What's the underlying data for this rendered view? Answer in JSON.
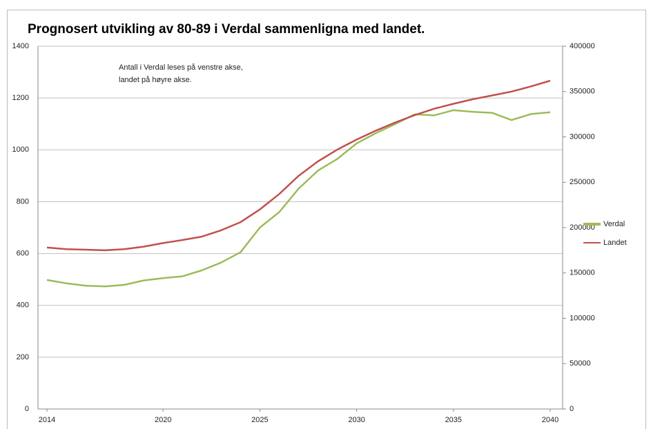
{
  "chart_data": {
    "type": "line",
    "title": "Prognosert utvikling av 80-89 i Verdal sammenligna med landet.",
    "annotation": [
      "Antall i Verdal leses på venstre akse,",
      "landet på høyre akse."
    ],
    "x": [
      2014,
      2015,
      2016,
      2017,
      2018,
      2019,
      2020,
      2021,
      2022,
      2023,
      2024,
      2025,
      2026,
      2027,
      2028,
      2029,
      2030,
      2031,
      2032,
      2033,
      2034,
      2035,
      2036,
      2037,
      2038,
      2039,
      2040
    ],
    "xlim": [
      2014,
      2040
    ],
    "xticks": [
      2014,
      2020,
      2025,
      2030,
      2035,
      2040
    ],
    "ylim": [
      0,
      1400
    ],
    "yticks": [
      0,
      200,
      400,
      600,
      800,
      1000,
      1200,
      1400
    ],
    "y2lim": [
      0,
      400000
    ],
    "y2ticks": [
      0,
      50000,
      100000,
      150000,
      200000,
      250000,
      300000,
      350000,
      400000
    ],
    "grid": true,
    "legend": "right",
    "series": [
      {
        "name": "Verdal",
        "color": "#9bbb59",
        "axis": "y",
        "values": [
          498,
          485,
          476,
          473,
          479,
          496,
          505,
          512,
          535,
          565,
          605,
          700,
          760,
          850,
          920,
          965,
          1025,
          1065,
          1100,
          1137,
          1133,
          1153,
          1147,
          1143,
          1115,
          1138,
          1145
        ]
      },
      {
        "name": "Landet",
        "color": "#c0504d",
        "axis": "y2",
        "values": [
          178000,
          176300,
          175700,
          175000,
          176300,
          179000,
          183000,
          186300,
          190000,
          197000,
          206000,
          220000,
          237000,
          257000,
          273000,
          286000,
          297000,
          307000,
          316000,
          324000,
          331000,
          336500,
          341500,
          345700,
          350000,
          355700,
          362000
        ]
      }
    ]
  }
}
